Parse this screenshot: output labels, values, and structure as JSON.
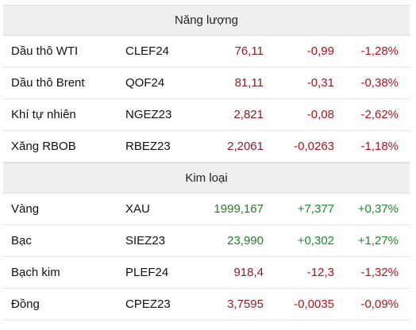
{
  "colors": {
    "negative": "#b3121a",
    "positive": "#1f8a2e",
    "price_negative": "#8d1c2a",
    "price_positive": "#2b7a2b",
    "section_header_bg": "#efefef"
  },
  "sections": [
    {
      "title": "Năng lượng",
      "rows": [
        {
          "name": "Dầu thô WTI",
          "code": "CLEF24",
          "price": "76,11",
          "change": "-0,99",
          "pct": "-1,28%",
          "trend": "down"
        },
        {
          "name": "Dầu thô Brent",
          "code": "QOF24",
          "price": "81,11",
          "change": "-0,31",
          "pct": "-0,38%",
          "trend": "down"
        },
        {
          "name": "Khí tự nhiên",
          "code": "NGEZ23",
          "price": "2,821",
          "change": "-0,08",
          "pct": "-2,62%",
          "trend": "down"
        },
        {
          "name": "Xăng RBOB",
          "code": "RBEZ23",
          "price": "2,2061",
          "change": "-0,0263",
          "pct": "-1,18%",
          "trend": "down"
        }
      ]
    },
    {
      "title": "Kim loại",
      "rows": [
        {
          "name": "Vàng",
          "code": "XAU",
          "price": "1999,167",
          "change": "+7,377",
          "pct": "+0,37%",
          "trend": "up"
        },
        {
          "name": "Bạc",
          "code": "SIEZ23",
          "price": "23,990",
          "change": "+0,302",
          "pct": "+1,27%",
          "trend": "up"
        },
        {
          "name": "Bạch kim",
          "code": "PLEF24",
          "price": "918,4",
          "change": "-12,3",
          "pct": "-1,32%",
          "trend": "down"
        },
        {
          "name": "Đồng",
          "code": "CPEZ23",
          "price": "3,7595",
          "change": "-0,0035",
          "pct": "-0,09%",
          "trend": "down"
        }
      ]
    }
  ]
}
